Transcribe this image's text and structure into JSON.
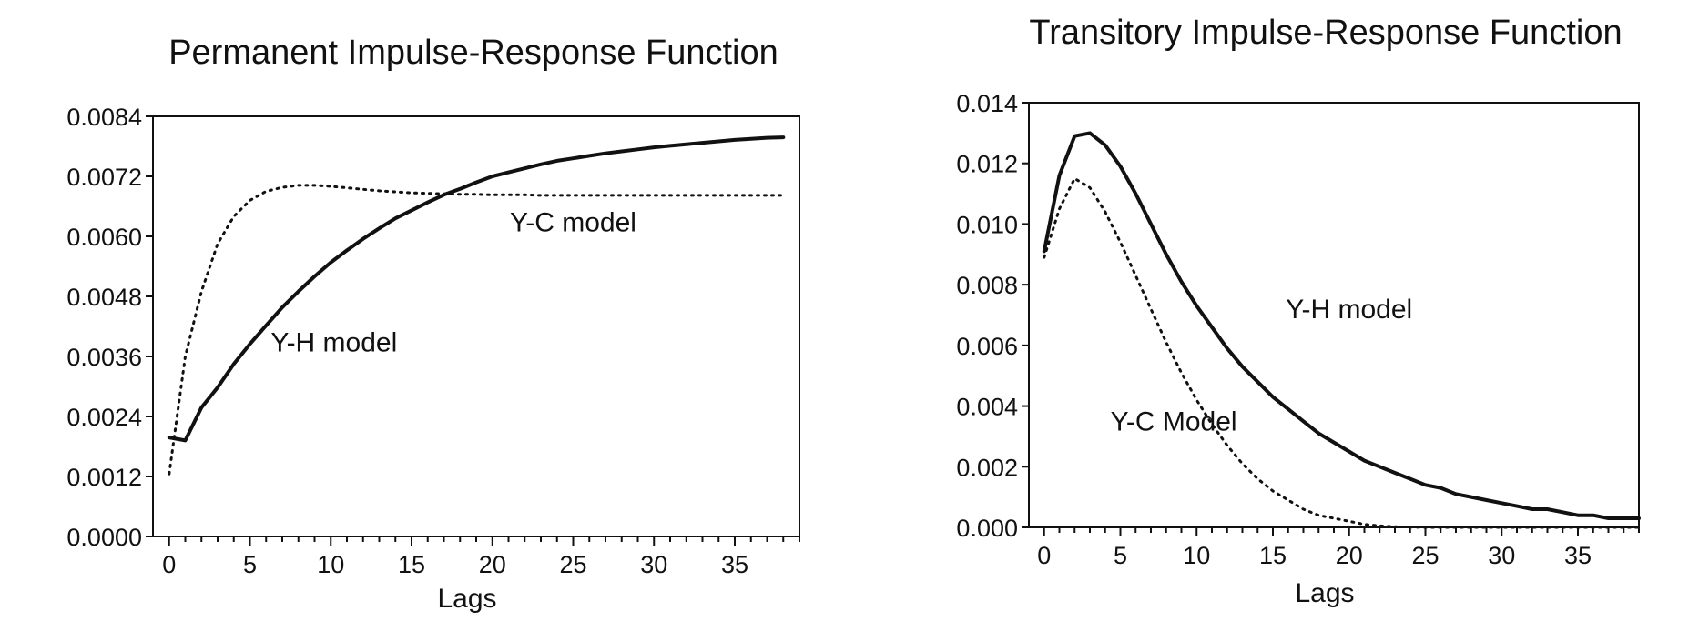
{
  "chart_data": [
    {
      "type": "line",
      "title": "Permanent Impulse-Response Function",
      "xlabel": "Lags",
      "ylabel": "",
      "xlim": [
        -1,
        39
      ],
      "ylim": [
        0.0,
        0.0084
      ],
      "xticks": [
        "0",
        "5",
        "10",
        "15",
        "20",
        "25",
        "30",
        "35"
      ],
      "yticks": [
        "0.0000",
        "0.0012",
        "0.0024",
        "0.0036",
        "0.0048",
        "0.0060",
        "0.0072",
        "0.0084"
      ],
      "series": [
        {
          "name": "Y-H model",
          "style": "solid",
          "x": [
            0,
            1,
            2,
            3,
            4,
            5,
            6,
            7,
            8,
            9,
            10,
            11,
            12,
            13,
            14,
            15,
            16,
            17,
            18,
            19,
            20,
            21,
            22,
            23,
            24,
            25,
            26,
            27,
            28,
            29,
            30,
            31,
            32,
            33,
            34,
            35,
            36,
            37,
            38
          ],
          "y": [
            0.00198,
            0.00192,
            0.00258,
            0.00298,
            0.00345,
            0.00385,
            0.00422,
            0.00458,
            0.0049,
            0.0052,
            0.00548,
            0.00572,
            0.00595,
            0.00616,
            0.00636,
            0.00652,
            0.00668,
            0.00683,
            0.00695,
            0.00708,
            0.0072,
            0.00728,
            0.00736,
            0.00744,
            0.00751,
            0.00756,
            0.00761,
            0.00766,
            0.0077,
            0.00774,
            0.00778,
            0.00781,
            0.00784,
            0.00787,
            0.0079,
            0.00793,
            0.00795,
            0.00797,
            0.00798
          ]
        },
        {
          "name": "Y-C model",
          "style": "dotted",
          "x": [
            0,
            1,
            2,
            3,
            4,
            5,
            6,
            7,
            8,
            9,
            10,
            11,
            12,
            13,
            14,
            15,
            16,
            17,
            18,
            19,
            20,
            21,
            22,
            23,
            24,
            25,
            26,
            27,
            28,
            29,
            30,
            31,
            32,
            33,
            34,
            35,
            36,
            37,
            38
          ],
          "y": [
            0.00125,
            0.0036,
            0.0049,
            0.00585,
            0.0064,
            0.00672,
            0.0069,
            0.00698,
            0.00702,
            0.00702,
            0.007,
            0.00697,
            0.00694,
            0.00691,
            0.00689,
            0.00687,
            0.00686,
            0.00685,
            0.00684,
            0.00684,
            0.00683,
            0.00683,
            0.00683,
            0.00682,
            0.00682,
            0.00682,
            0.00682,
            0.00682,
            0.00682,
            0.00682,
            0.00682,
            0.00682,
            0.00682,
            0.00682,
            0.00682,
            0.00682,
            0.00682,
            0.00682,
            0.00682
          ]
        }
      ],
      "annotations": [
        {
          "text": "Y-C model",
          "x": 25,
          "y": 0.0061
        },
        {
          "text": "Y-H model",
          "x": 10.2,
          "y": 0.0037
        }
      ],
      "grid": false
    },
    {
      "type": "line",
      "title": "Transitory Impulse-Response Function",
      "xlabel": "Lags",
      "ylabel": "",
      "xlim": [
        -1,
        39
      ],
      "ylim": [
        0.0,
        0.014
      ],
      "xticks": [
        "0",
        "5",
        "10",
        "15",
        "20",
        "25",
        "30",
        "35"
      ],
      "yticks": [
        "0.000",
        "0.002",
        "0.004",
        "0.006",
        "0.008",
        "0.010",
        "0.012",
        "0.014"
      ],
      "series": [
        {
          "name": "Y-H model",
          "style": "solid",
          "x": [
            0,
            1,
            2,
            3,
            4,
            5,
            6,
            7,
            8,
            9,
            10,
            11,
            12,
            13,
            14,
            15,
            16,
            17,
            18,
            19,
            20,
            21,
            22,
            23,
            24,
            25,
            26,
            27,
            28,
            29,
            30,
            31,
            32,
            33,
            34,
            35,
            36,
            37,
            38,
            39
          ],
          "y": [
            0.0091,
            0.0116,
            0.0129,
            0.013,
            0.0126,
            0.0119,
            0.011,
            0.01,
            0.009,
            0.0081,
            0.0073,
            0.0066,
            0.0059,
            0.0053,
            0.0048,
            0.0043,
            0.0039,
            0.0035,
            0.0031,
            0.0028,
            0.0025,
            0.0022,
            0.002,
            0.0018,
            0.0016,
            0.0014,
            0.0013,
            0.0011,
            0.001,
            0.0009,
            0.0008,
            0.0007,
            0.0006,
            0.0006,
            0.0005,
            0.0004,
            0.0004,
            0.0003,
            0.0003,
            0.0003
          ]
        },
        {
          "name": "Y-C Model",
          "style": "dotted",
          "x": [
            0,
            1,
            2,
            3,
            4,
            5,
            6,
            7,
            8,
            9,
            10,
            11,
            12,
            13,
            14,
            15,
            16,
            17,
            18,
            19,
            20,
            21,
            22,
            23,
            24,
            25,
            26,
            27,
            28,
            29,
            30,
            31,
            32,
            33,
            34,
            35,
            36,
            37,
            38,
            39
          ],
          "y": [
            0.0089,
            0.0105,
            0.0115,
            0.0112,
            0.0104,
            0.0094,
            0.0083,
            0.0072,
            0.0061,
            0.0051,
            0.0042,
            0.0034,
            0.0027,
            0.0021,
            0.0016,
            0.0012,
            0.0009,
            0.0006,
            0.0004,
            0.0003,
            0.0002,
            0.0001,
            5e-05,
            2e-05,
            1e-05,
            0,
            0,
            0,
            0,
            0,
            0,
            0,
            0,
            0,
            0,
            0,
            0,
            0,
            0,
            0
          ]
        }
      ],
      "annotations": [
        {
          "text": "Y-H model",
          "x": 20.0,
          "y": 0.0069
        },
        {
          "text": "Y-C Model",
          "x": 8.5,
          "y": 0.0032
        }
      ],
      "grid": false
    }
  ]
}
